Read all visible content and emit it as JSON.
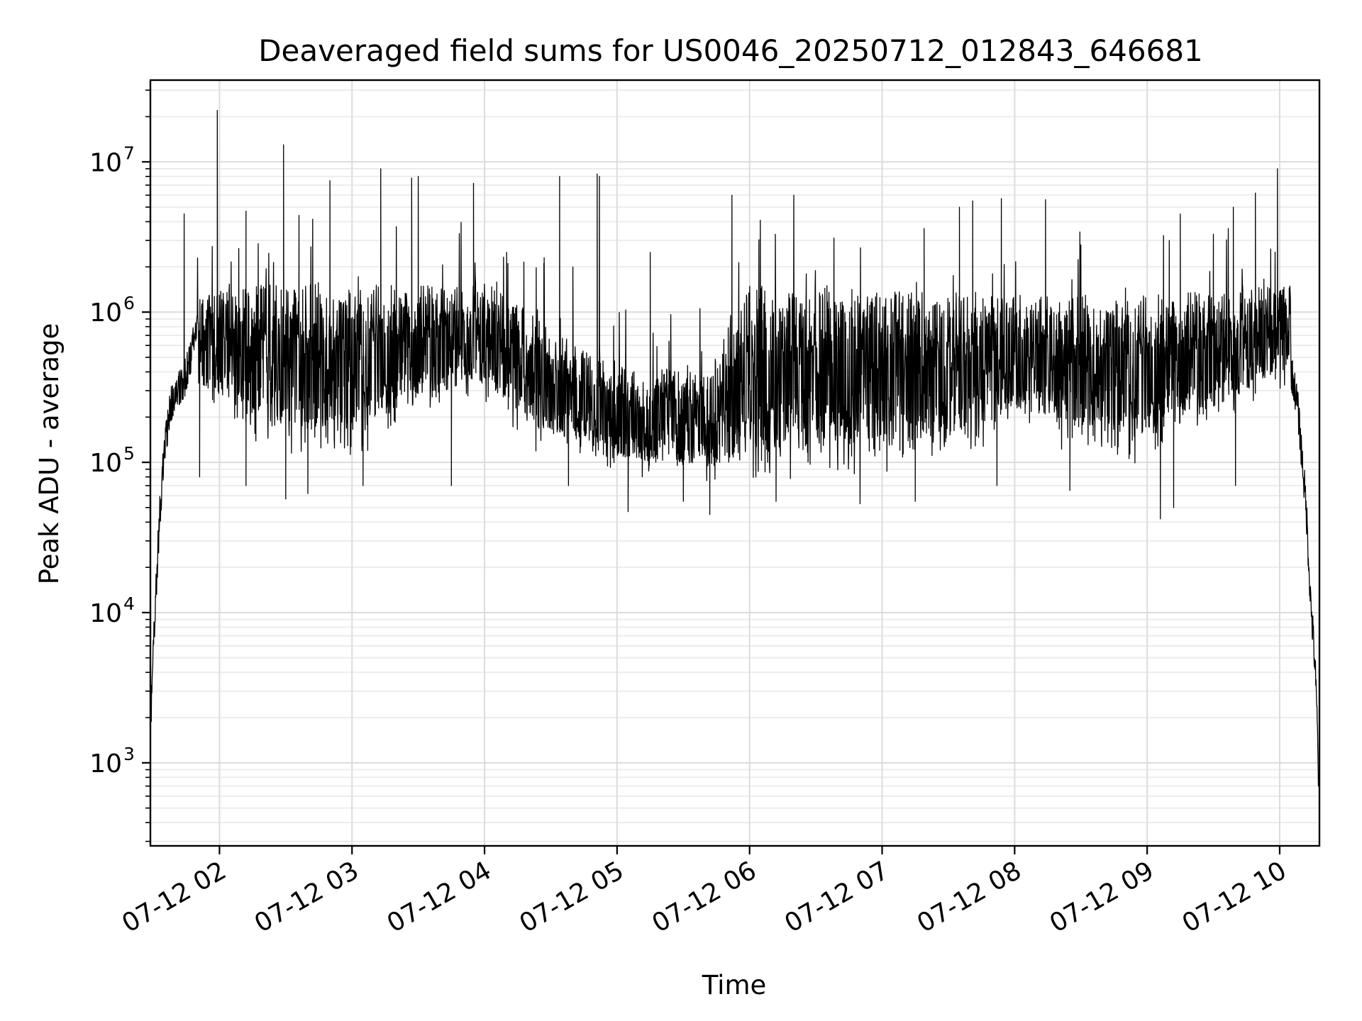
{
  "chart_data": {
    "type": "line",
    "title": "Deaveraged field sums for US0046_20250712_012843_646681",
    "xlabel": "Time",
    "ylabel": "Peak ADU - average",
    "y_scale": "log",
    "ylim": [
      280,
      35000000
    ],
    "xlim": [
      "2025-07-12T01:28:43",
      "2025-07-12T10:18:00"
    ],
    "x_tick_labels": [
      "07-12 02",
      "07-12 03",
      "07-12 04",
      "07-12 05",
      "07-12 06",
      "07-12 07",
      "07-12 08",
      "07-12 09",
      "07-12 10"
    ],
    "x_tick_times": [
      "2025-07-12T02:00",
      "2025-07-12T03:00",
      "2025-07-12T04:00",
      "2025-07-12T05:00",
      "2025-07-12T06:00",
      "2025-07-12T07:00",
      "2025-07-12T08:00",
      "2025-07-12T09:00",
      "2025-07-12T10:00"
    ],
    "y_ticks": [
      {
        "value": 1000,
        "base": "10",
        "exp": "3"
      },
      {
        "value": 10000,
        "base": "10",
        "exp": "4"
      },
      {
        "value": 100000,
        "base": "10",
        "exp": "5"
      },
      {
        "value": 1000000,
        "base": "10",
        "exp": "6"
      },
      {
        "value": 10000000,
        "base": "10",
        "exp": "7"
      }
    ],
    "grid": true,
    "series": [
      {
        "color": "#000000",
        "points": [
          [
            "2025-07-12T01:29",
            2000
          ],
          [
            "2025-07-12T01:31",
            12000
          ],
          [
            "2025-07-12T01:33",
            45000
          ],
          [
            "2025-07-12T01:35",
            120000
          ],
          [
            "2025-07-12T01:38",
            250000
          ],
          [
            "2025-07-12T01:41",
            300000
          ],
          [
            "2025-07-12T01:44",
            350000
          ],
          [
            "2025-07-12T01:47",
            500000
          ],
          [
            "2025-07-12T01:50",
            900000
          ],
          [
            "2025-07-12T02:00",
            900000
          ],
          [
            "2025-07-12T02:15",
            1000000
          ],
          [
            "2025-07-12T02:30",
            900000
          ],
          [
            "2025-07-12T02:45",
            750000
          ],
          [
            "2025-07-12T03:00",
            700000
          ],
          [
            "2025-07-12T03:30",
            800000
          ],
          [
            "2025-07-12T03:55",
            1100000
          ],
          [
            "2025-07-12T04:10",
            650000
          ],
          [
            "2025-07-12T04:30",
            350000
          ],
          [
            "2025-07-12T05:00",
            200000
          ],
          [
            "2025-07-12T05:20",
            150000
          ],
          [
            "2025-07-12T05:40",
            110000
          ],
          [
            "2025-07-12T06:00",
            200000
          ],
          [
            "2025-07-12T06:30",
            300000
          ],
          [
            "2025-07-12T07:00",
            350000
          ],
          [
            "2025-07-12T07:30",
            400000
          ],
          [
            "2025-07-12T08:00",
            500000
          ],
          [
            "2025-07-12T08:30",
            450000
          ],
          [
            "2025-07-12T09:00",
            450000
          ],
          [
            "2025-07-12T09:30",
            400000
          ],
          [
            "2025-07-12T09:50",
            500000
          ],
          [
            "2025-07-12T10:00",
            900000
          ],
          [
            "2025-07-12T10:04",
            500000
          ],
          [
            "2025-07-12T10:08",
            250000
          ],
          [
            "2025-07-12T10:12",
            50000
          ],
          [
            "2025-07-12T10:14",
            12000
          ],
          [
            "2025-07-12T10:16",
            4500
          ],
          [
            "2025-07-12T10:17",
            1800
          ],
          [
            "2025-07-12T10:18",
            450
          ]
        ],
        "band_low": [
          [
            "2025-07-12T01:50",
            250000
          ],
          [
            "2025-07-12T02:15",
            120000
          ],
          [
            "2025-07-12T03:00",
            90000
          ],
          [
            "2025-07-12T03:55",
            250000
          ],
          [
            "2025-07-12T04:20",
            120000
          ],
          [
            "2025-07-12T05:00",
            75000
          ],
          [
            "2025-07-12T05:45",
            60000
          ],
          [
            "2025-07-12T06:30",
            65000
          ],
          [
            "2025-07-12T07:30",
            75000
          ],
          [
            "2025-07-12T08:00",
            150000
          ],
          [
            "2025-07-12T09:00",
            80000
          ],
          [
            "2025-07-12T09:55",
            250000
          ],
          [
            "2025-07-12T10:05",
            300000
          ]
        ],
        "band_high": [
          [
            "2025-07-12T01:50",
            1300000
          ],
          [
            "2025-07-12T02:30",
            1600000
          ],
          [
            "2025-07-12T03:30",
            1500000
          ],
          [
            "2025-07-12T04:00",
            1600000
          ],
          [
            "2025-07-12T04:30",
            800000
          ],
          [
            "2025-07-12T05:00",
            450000
          ],
          [
            "2025-07-12T05:40",
            400000
          ],
          [
            "2025-07-12T06:00",
            1500000
          ],
          [
            "2025-07-12T07:00",
            1400000
          ],
          [
            "2025-07-12T08:00",
            1300000
          ],
          [
            "2025-07-12T09:00",
            1300000
          ],
          [
            "2025-07-12T10:00",
            1500000
          ]
        ],
        "spikes": [
          [
            "2025-07-12T01:59",
            22000000
          ],
          [
            "2025-07-12T02:29",
            13000000
          ],
          [
            "2025-07-12T02:50",
            7500000
          ],
          [
            "2025-07-12T03:13",
            9000000
          ],
          [
            "2025-07-12T03:27",
            7800000
          ],
          [
            "2025-07-12T03:30",
            8000000
          ],
          [
            "2025-07-12T03:55",
            7200000
          ],
          [
            "2025-07-12T04:34",
            8000000
          ],
          [
            "2025-07-12T04:51",
            8300000
          ],
          [
            "2025-07-12T04:52",
            8000000
          ],
          [
            "2025-07-12T05:52",
            6000000
          ],
          [
            "2025-07-12T06:20",
            6000000
          ],
          [
            "2025-07-12T07:19",
            3600000
          ],
          [
            "2025-07-12T07:35",
            5000000
          ],
          [
            "2025-07-12T07:41",
            5500000
          ],
          [
            "2025-07-12T07:54",
            5700000
          ],
          [
            "2025-07-12T08:14",
            5600000
          ],
          [
            "2025-07-12T09:15",
            4500000
          ],
          [
            "2025-07-12T09:39",
            5000000
          ],
          [
            "2025-07-12T09:49",
            6200000
          ],
          [
            "2025-07-12T09:59",
            9000000
          ],
          [
            "2025-07-12T01:44",
            4500000
          ],
          [
            "2025-07-12T02:12",
            4700000
          ],
          [
            "2025-07-12T02:36",
            4400000
          ],
          [
            "2025-07-12T04:10",
            2500000
          ],
          [
            "2025-07-12T04:27",
            2300000
          ],
          [
            "2025-07-12T04:40",
            2000000
          ],
          [
            "2025-07-12T05:15",
            2500000
          ],
          [
            "2025-07-12T06:35",
            1500000
          ],
          [
            "2025-07-12T07:50",
            1800000
          ],
          [
            "2025-07-12T08:30",
            2800000
          ],
          [
            "2025-07-12T09:10",
            3000000
          ],
          [
            "2025-07-12T09:30",
            3300000
          ]
        ],
        "dips": [
          [
            "2025-07-12T01:51",
            80000
          ],
          [
            "2025-07-12T02:12",
            70000
          ],
          [
            "2025-07-12T02:30",
            57000
          ],
          [
            "2025-07-12T02:40",
            62000
          ],
          [
            "2025-07-12T03:05",
            70000
          ],
          [
            "2025-07-12T03:45",
            70000
          ],
          [
            "2025-07-12T04:38",
            70000
          ],
          [
            "2025-07-12T05:05",
            47000
          ],
          [
            "2025-07-12T05:30",
            55000
          ],
          [
            "2025-07-12T05:42",
            45000
          ],
          [
            "2025-07-12T06:12",
            55000
          ],
          [
            "2025-07-12T06:50",
            53000
          ],
          [
            "2025-07-12T07:15",
            55000
          ],
          [
            "2025-07-12T07:52",
            70000
          ],
          [
            "2025-07-12T08:25",
            65000
          ],
          [
            "2025-07-12T09:06",
            42000
          ],
          [
            "2025-07-12T09:12",
            50000
          ],
          [
            "2025-07-12T09:40",
            70000
          ]
        ]
      }
    ]
  }
}
